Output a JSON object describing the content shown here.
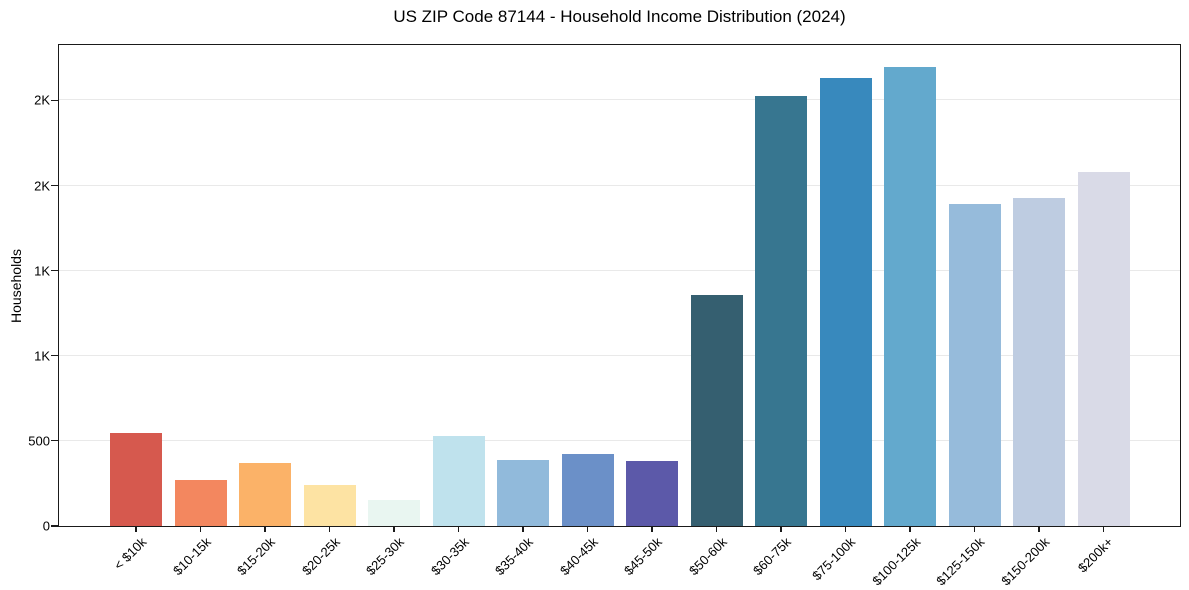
{
  "page": {
    "background_color": "#ffffff",
    "text_color": "#1a1a1a",
    "gridline_color": "#e9e9e9"
  },
  "chart_data": {
    "type": "bar",
    "title": "US ZIP Code 87144 - Household Income Distribution (2024)",
    "xlabel": "",
    "ylabel": "Households",
    "ylim": [
      0,
      2820
    ],
    "grid": "horizontal gridlines at major y ticks, drawn behind bars",
    "legend": "none",
    "x_tick_rotation_deg": 45,
    "yticks": {
      "values": [
        0,
        500,
        1000,
        1500,
        2000,
        2500
      ],
      "labels": [
        "0",
        "500",
        "1K",
        "1K",
        "2K",
        "2K"
      ]
    },
    "categories": [
      "< $10k",
      "$10-15k",
      "$15-20k",
      "$20-25k",
      "$25-30k",
      "$30-35k",
      "$35-40k",
      "$40-45k",
      "$45-50k",
      "$50-60k",
      "$60-75k",
      "$75-100k",
      "$100-125k",
      "$125-150k",
      "$150-200k",
      "$200k+"
    ],
    "values": [
      545,
      270,
      370,
      240,
      150,
      530,
      385,
      425,
      380,
      1360,
      2525,
      2635,
      2695,
      1890,
      1930,
      2080
    ],
    "bar_colors": [
      "#d6594e",
      "#f3875f",
      "#fbb268",
      "#fde3a3",
      "#e9f6f1",
      "#bfe2ed",
      "#91badb",
      "#6b90c8",
      "#5c59a9",
      "#355f70",
      "#377690",
      "#3889bd",
      "#63a9cd",
      "#96bbdb",
      "#becce1",
      "#d9dae7"
    ]
  }
}
